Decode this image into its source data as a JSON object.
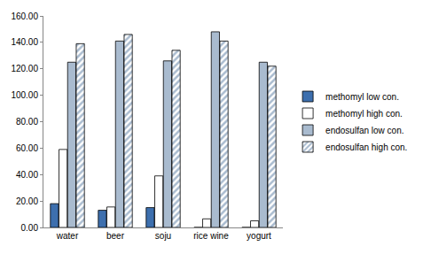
{
  "chart_data": {
    "type": "bar",
    "categories": [
      "water",
      "beer",
      "soju",
      "rice wine",
      "yogurt"
    ],
    "series": [
      {
        "name": "methomyl low con.",
        "color": "#3d6fae",
        "marker": "solid",
        "values": [
          18,
          13,
          15,
          0,
          0
        ]
      },
      {
        "name": "methomyl high con.",
        "color": "#ffffff",
        "marker": "solid",
        "values": [
          59,
          15.5,
          39,
          6.5,
          5
        ]
      },
      {
        "name": "endosulfan low con.",
        "color": "#a9bbcf",
        "marker": "solid",
        "values": [
          125,
          141,
          126,
          148,
          125
        ]
      },
      {
        "name": "endosulfan high con.",
        "color": "#a9bbcf",
        "marker": "hatched",
        "values": [
          139,
          146,
          134,
          141,
          122
        ]
      }
    ],
    "ylim": [
      0,
      160
    ],
    "yticks": [
      {
        "value": 0,
        "label": "0.00"
      },
      {
        "value": 20,
        "label": "20.00"
      },
      {
        "value": 40,
        "label": "40.00"
      },
      {
        "value": 60,
        "label": "60.00"
      },
      {
        "value": 80,
        "label": "80.00"
      },
      {
        "value": 100,
        "label": "100.00"
      },
      {
        "value": 120,
        "label": "120.00"
      },
      {
        "value": 140,
        "label": "140.00"
      },
      {
        "value": 160,
        "label": "160.00"
      }
    ],
    "grid": false,
    "legend": "right"
  }
}
